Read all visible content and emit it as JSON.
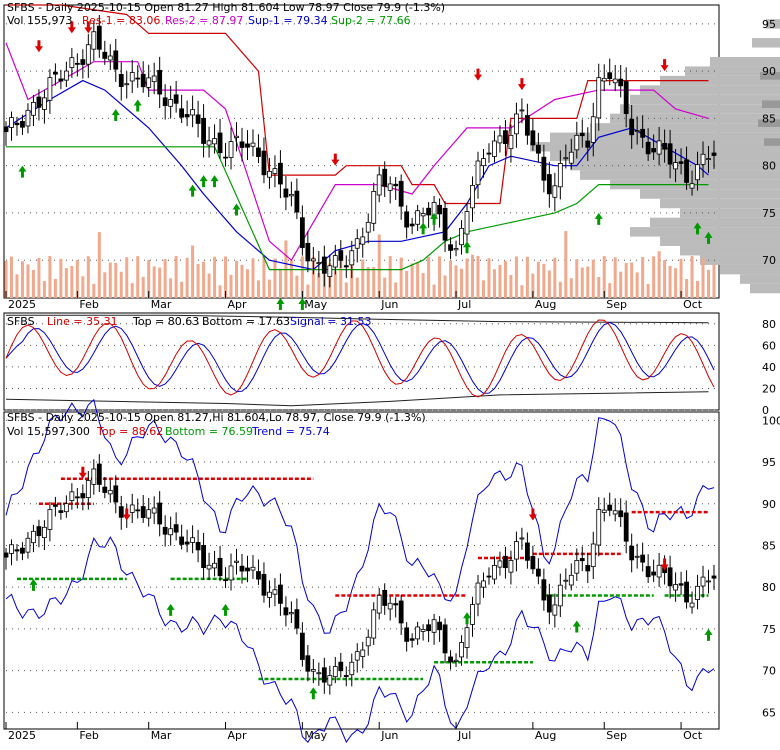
{
  "colors": {
    "background": "#ffffff",
    "frame": "#000000",
    "grid": "#555555",
    "candle": "#000000",
    "volume": "#f0a98d",
    "resistance1": "#cc0000",
    "resistance2": "#cc00cc",
    "support1": "#0000cc",
    "support2": "#009900",
    "profile": "#bbbbbb",
    "profile_dark": "#999999",
    "arrow_up": "#009900",
    "arrow_down": "#dd0000",
    "osc_line": "#cc0000",
    "osc_signal": "#0000cc",
    "osc_top": "#222222",
    "osc_bottom": "#222222",
    "trend": "#0000cc",
    "top_dashed": "#dd0000",
    "bottom_dashed": "#009900"
  },
  "top_panel": {
    "title": "SFBS - Daily 2025-10-15 Open 81.27  High 81.604  Low 78.97  Close 79.9 (-1.3%)",
    "legend": {
      "vol": "Vol 155,973",
      "res1": "Res-1 = 83.06",
      "res2": "Res-2 = 87.97",
      "sup1": "Sup-1 = 79.34",
      "sup2": "Sup-2 = 77.66"
    },
    "y_ticks": [
      "95",
      "90",
      "85",
      "80",
      "75",
      "70"
    ]
  },
  "mid_panel": {
    "title": "SFBS",
    "legend": {
      "line": "Line = 35.31",
      "top": "Top = 80.63",
      "bottom": "Bottom = 17.63",
      "signal": "Signal = 31.53"
    },
    "y_ticks": [
      "80",
      "60",
      "40",
      "20",
      "0"
    ]
  },
  "bottom_panel": {
    "title": "SFBS - Daily 2025-10-15 Open 81.27,Hi 81.604,Lo 78.97, Close 79.9 (-1.3%)",
    "legend": {
      "vol": "Vol 15,597,300",
      "top": "Top = 88.62",
      "bottom": "Bottom = 76.59",
      "trend": "Trend = 75.74"
    },
    "y_ticks": [
      "100",
      "95",
      "90",
      "85",
      "80",
      "75",
      "70",
      "65"
    ]
  },
  "x_labels": [
    "2025",
    "Feb",
    "Mar",
    "Apr",
    "May",
    "Jun",
    "Jul",
    "Aug",
    "Sep",
    "Oct"
  ],
  "chart_data": [
    {
      "type": "candlestick",
      "title": "SFBS - Daily 2025-10-15 Open 81.27  High 81.604  Low 78.97  Close 79.9 (-1.3%)",
      "ylim": [
        66,
        97
      ],
      "x_labels": [
        "2025",
        "Feb",
        "Mar",
        "Apr",
        "May",
        "Jun",
        "Jul",
        "Aug",
        "Sep",
        "Oct"
      ],
      "close_path": [
        [
          0,
          83
        ],
        [
          4,
          86
        ],
        [
          8,
          88
        ],
        [
          12,
          91
        ],
        [
          16,
          93
        ],
        [
          20,
          90
        ],
        [
          24,
          89
        ],
        [
          28,
          88
        ],
        [
          32,
          86
        ],
        [
          36,
          83
        ],
        [
          40,
          82
        ],
        [
          44,
          82
        ],
        [
          48,
          80
        ],
        [
          52,
          76
        ],
        [
          54,
          72
        ],
        [
          56,
          70
        ],
        [
          60,
          69
        ],
        [
          62,
          70
        ],
        [
          64,
          72
        ],
        [
          66,
          75
        ],
        [
          68,
          78
        ],
        [
          70,
          78
        ],
        [
          72,
          76
        ],
        [
          74,
          74
        ],
        [
          76,
          75
        ],
        [
          78,
          75
        ],
        [
          80,
          73
        ],
        [
          82,
          71
        ],
        [
          84,
          76
        ],
        [
          86,
          79
        ],
        [
          88,
          82
        ],
        [
          90,
          83
        ],
        [
          92,
          84
        ],
        [
          94,
          85
        ],
        [
          96,
          82
        ],
        [
          98,
          79
        ],
        [
          100,
          78
        ],
        [
          102,
          81
        ],
        [
          104,
          82
        ],
        [
          106,
          83
        ],
        [
          108,
          89
        ],
        [
          110,
          90
        ],
        [
          112,
          87
        ],
        [
          114,
          84
        ],
        [
          116,
          83
        ],
        [
          118,
          82
        ],
        [
          120,
          81
        ],
        [
          122,
          80
        ],
        [
          124,
          79
        ],
        [
          126,
          80
        ],
        [
          128,
          81
        ]
      ],
      "series": [
        {
          "name": "Res-1",
          "value": 83.06
        },
        {
          "name": "Res-2",
          "value": 87.97
        },
        {
          "name": "Sup-1",
          "value": 79.34
        },
        {
          "name": "Sup-2",
          "value": 77.66
        }
      ],
      "signal_arrows": {
        "down": [
          [
            6,
            92
          ],
          [
            12,
            94
          ],
          [
            15,
            94
          ],
          [
            60,
            80
          ],
          [
            86,
            89
          ],
          [
            94,
            88
          ],
          [
            120,
            90
          ]
        ],
        "up": [
          [
            3,
            80
          ],
          [
            20,
            86
          ],
          [
            24,
            87
          ],
          [
            34,
            78
          ],
          [
            36,
            79
          ],
          [
            38,
            79
          ],
          [
            42,
            76
          ],
          [
            50,
            66
          ],
          [
            54,
            66
          ],
          [
            76,
            74
          ],
          [
            78,
            75
          ],
          [
            84,
            72
          ],
          [
            108,
            75
          ],
          [
            126,
            74
          ],
          [
            128,
            73
          ]
        ]
      }
    },
    {
      "type": "line",
      "title": "SFBS",
      "ylim": [
        0,
        90
      ],
      "y_ticks": [
        80,
        60,
        40,
        20,
        0
      ],
      "series": [
        {
          "name": "Line",
          "last": 35.31
        },
        {
          "name": "Top",
          "value": 80.63
        },
        {
          "name": "Bottom",
          "value": 17.63
        },
        {
          "name": "Signal",
          "last": 31.53
        }
      ]
    },
    {
      "type": "candlestick",
      "title": "SFBS - Daily 2025-10-15 Open 81.27,Hi 81.604,Lo 78.97, Close 79.9 (-1.3%)",
      "ylim": [
        63,
        101
      ],
      "y_ticks": [
        100,
        95,
        90,
        85,
        80,
        75,
        70,
        65
      ],
      "series": [
        {
          "name": "Top",
          "value": 88.62
        },
        {
          "name": "Bottom",
          "value": 76.59
        },
        {
          "name": "Trend",
          "value": 75.74
        }
      ]
    }
  ]
}
